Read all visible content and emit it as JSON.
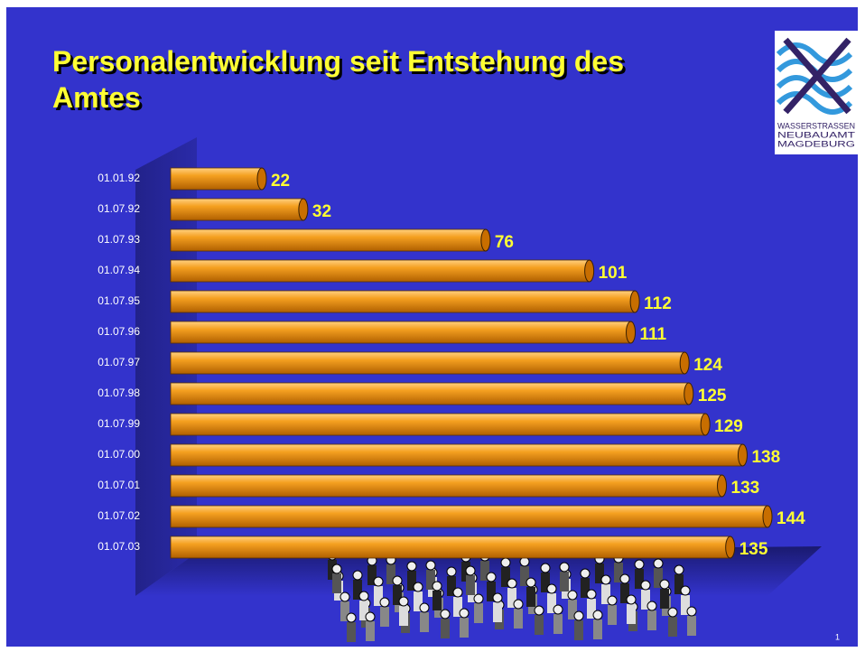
{
  "chart_data": {
    "type": "bar",
    "orientation": "horizontal",
    "title": "Personalentwicklung seit Entstehung des Amtes",
    "categories": [
      "01.01.92",
      "01.07.92",
      "01.07.93",
      "01.07.94",
      "01.07.95",
      "01.07.96",
      "01.07.97",
      "01.07.98",
      "01.07.99",
      "01.07.00",
      "01.07.01",
      "01.07.02",
      "01.07.03"
    ],
    "values": [
      22,
      32,
      76,
      101,
      112,
      111,
      124,
      125,
      129,
      138,
      133,
      144,
      135
    ],
    "color": "#f0a020"
  },
  "logo": [
    "WASSERSTRASSEN",
    "NEUBAUAMT",
    "MAGDEBURG"
  ],
  "page_number": "1"
}
